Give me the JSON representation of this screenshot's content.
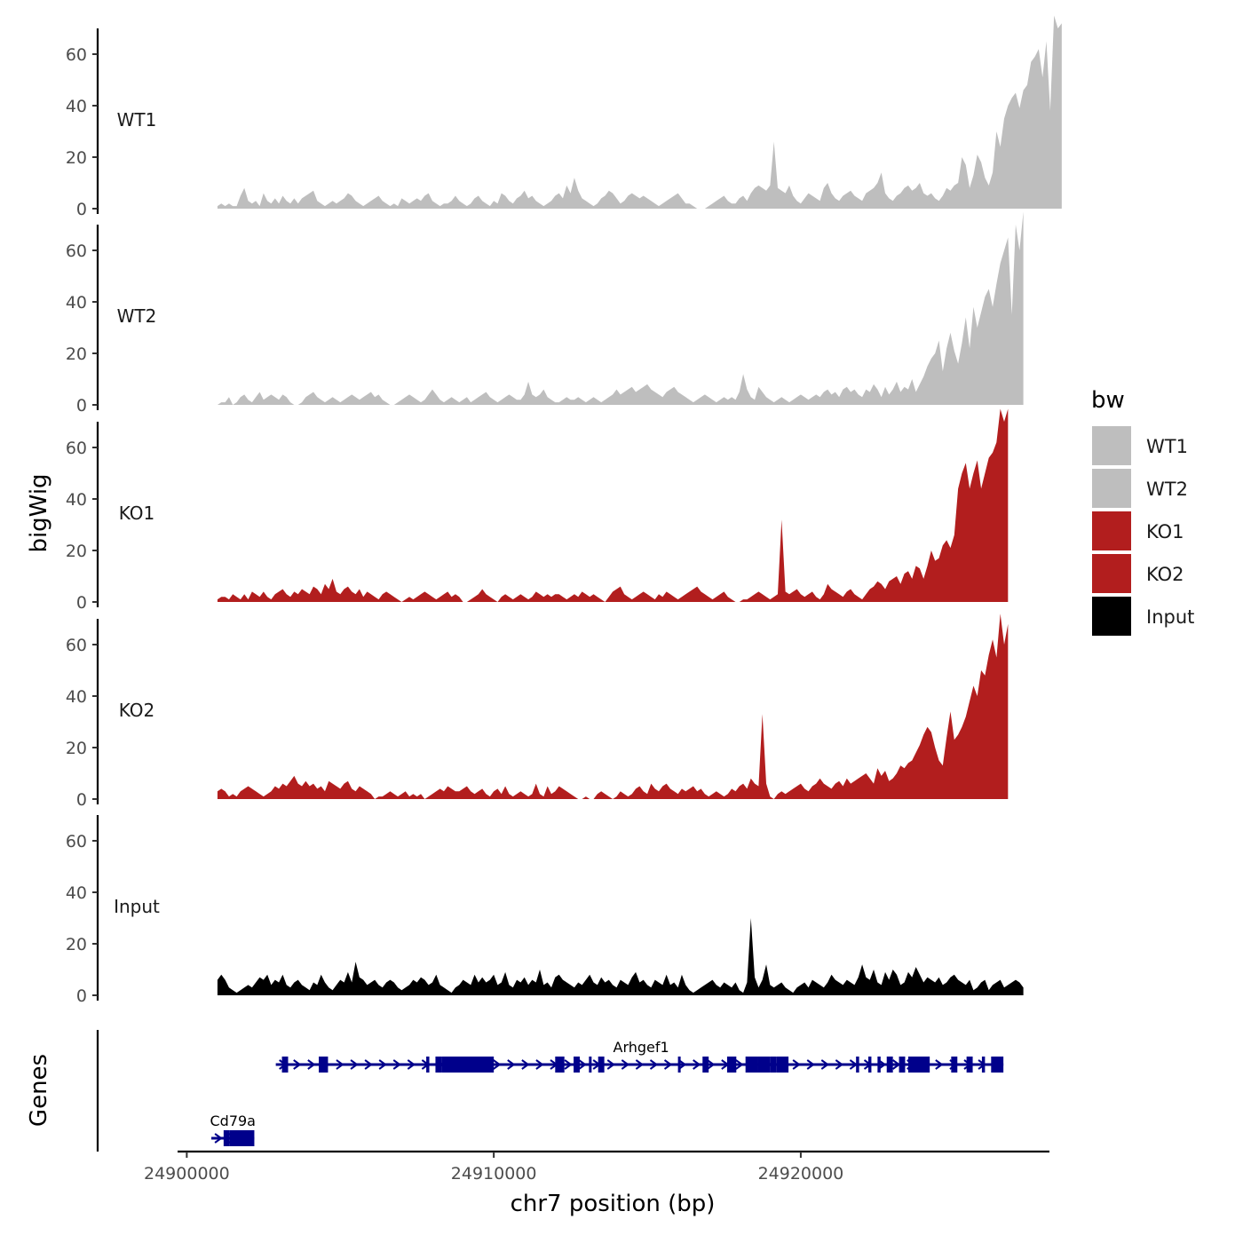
{
  "chart_data": {
    "type": "area",
    "ylabel": "bigWig",
    "xlabel": "chr7 position (bp)",
    "genes_label": "Genes",
    "legend_title": "bw",
    "xlim": [
      24899700,
      24928100
    ],
    "ylim": [
      0,
      70
    ],
    "yticks": [
      0,
      20,
      40,
      60
    ],
    "xticks": [
      24900000,
      24910000,
      24920000
    ],
    "xtick_labels": [
      "24900000",
      "24910000",
      "24920000"
    ],
    "colors": {
      "WT1": "#bebebe",
      "WT2": "#bebebe",
      "KO1": "#b21e1e",
      "KO2": "#b21e1e",
      "Input": "#000000",
      "gene": "#00008b"
    },
    "legend": [
      "WT1",
      "WT2",
      "KO1",
      "KO2",
      "Input"
    ],
    "x_start": 24901000,
    "x_step": 125,
    "series": [
      {
        "name": "WT1",
        "values": [
          1,
          2,
          1,
          2,
          1,
          1,
          5,
          8,
          3,
          2,
          3,
          1,
          6,
          3,
          2,
          4,
          2,
          5,
          3,
          2,
          4,
          2,
          4,
          5,
          6,
          7,
          3,
          2,
          1,
          2,
          3,
          2,
          3,
          4,
          6,
          5,
          3,
          2,
          1,
          2,
          3,
          4,
          5,
          3,
          2,
          1,
          2,
          1,
          4,
          3,
          2,
          3,
          4,
          3,
          5,
          6,
          3,
          2,
          1,
          2,
          2,
          3,
          5,
          3,
          2,
          1,
          2,
          4,
          5,
          3,
          2,
          1,
          3,
          2,
          6,
          5,
          3,
          2,
          4,
          5,
          7,
          4,
          5,
          3,
          2,
          1,
          2,
          3,
          5,
          6,
          4,
          9,
          6,
          12,
          7,
          4,
          3,
          2,
          1,
          2,
          4,
          5,
          7,
          6,
          4,
          2,
          3,
          5,
          6,
          5,
          4,
          5,
          4,
          3,
          2,
          1,
          2,
          3,
          4,
          5,
          6,
          4,
          2,
          2,
          1,
          0,
          0,
          0,
          1,
          2,
          3,
          4,
          5,
          3,
          2,
          2,
          4,
          5,
          3,
          6,
          8,
          9,
          8,
          7,
          9,
          26,
          8,
          7,
          6,
          9,
          5,
          3,
          2,
          4,
          6,
          5,
          4,
          3,
          8,
          10,
          6,
          4,
          3,
          5,
          6,
          7,
          5,
          4,
          3,
          6,
          7,
          8,
          10,
          14,
          6,
          4,
          3,
          5,
          6,
          8,
          9,
          7,
          8,
          10,
          6,
          5,
          6,
          4,
          3,
          5,
          8,
          7,
          9,
          10,
          20,
          17,
          8,
          13,
          21,
          18,
          12,
          9,
          14,
          30,
          24,
          35,
          40,
          43,
          45,
          39,
          46,
          48,
          57,
          59,
          62,
          51,
          65,
          38,
          75,
          70,
          72
        ]
      },
      {
        "name": "WT2",
        "values": [
          0,
          1,
          1,
          3,
          0,
          1,
          3,
          4,
          2,
          1,
          3,
          5,
          2,
          3,
          4,
          3,
          2,
          4,
          3,
          1,
          0,
          0,
          1,
          3,
          4,
          5,
          3,
          2,
          1,
          2,
          3,
          2,
          1,
          2,
          3,
          4,
          3,
          2,
          3,
          4,
          5,
          3,
          4,
          2,
          1,
          0,
          0,
          1,
          2,
          3,
          4,
          3,
          2,
          1,
          2,
          4,
          6,
          4,
          2,
          1,
          2,
          3,
          2,
          1,
          2,
          3,
          1,
          2,
          3,
          4,
          5,
          3,
          2,
          1,
          2,
          3,
          4,
          3,
          2,
          2,
          4,
          9,
          4,
          3,
          4,
          6,
          3,
          2,
          1,
          1,
          2,
          3,
          2,
          2,
          3,
          2,
          1,
          2,
          3,
          2,
          1,
          2,
          3,
          4,
          6,
          4,
          5,
          6,
          7,
          5,
          6,
          7,
          8,
          6,
          5,
          4,
          3,
          5,
          6,
          7,
          5,
          4,
          3,
          2,
          1,
          2,
          3,
          4,
          3,
          2,
          1,
          2,
          3,
          2,
          3,
          2,
          5,
          12,
          6,
          3,
          2,
          7,
          5,
          3,
          2,
          1,
          2,
          3,
          2,
          1,
          2,
          3,
          4,
          3,
          2,
          3,
          4,
          3,
          5,
          6,
          4,
          5,
          3,
          6,
          7,
          5,
          6,
          4,
          3,
          6,
          5,
          8,
          6,
          3,
          7,
          4,
          6,
          9,
          5,
          7,
          6,
          10,
          5,
          8,
          11,
          15,
          18,
          20,
          25,
          13,
          22,
          28,
          21,
          16,
          24,
          34,
          22,
          38,
          30,
          36,
          42,
          45,
          38,
          47,
          55,
          60,
          65,
          35,
          70,
          60,
          75
        ]
      },
      {
        "name": "KO1",
        "values": [
          1,
          2,
          2,
          1,
          3,
          2,
          1,
          3,
          1,
          4,
          3,
          2,
          4,
          2,
          1,
          3,
          4,
          5,
          3,
          2,
          4,
          3,
          5,
          4,
          3,
          6,
          5,
          3,
          7,
          5,
          9,
          4,
          3,
          5,
          6,
          4,
          3,
          5,
          2,
          4,
          3,
          2,
          1,
          3,
          4,
          3,
          2,
          1,
          0,
          1,
          2,
          1,
          2,
          3,
          4,
          3,
          2,
          1,
          2,
          3,
          4,
          2,
          3,
          2,
          0,
          0,
          1,
          2,
          3,
          5,
          3,
          2,
          1,
          0,
          2,
          3,
          2,
          1,
          2,
          3,
          2,
          1,
          2,
          4,
          3,
          2,
          3,
          2,
          3,
          3,
          2,
          1,
          2,
          3,
          2,
          4,
          3,
          2,
          3,
          2,
          1,
          0,
          2,
          4,
          5,
          6,
          3,
          2,
          1,
          2,
          3,
          4,
          3,
          2,
          1,
          3,
          2,
          4,
          3,
          2,
          1,
          2,
          3,
          4,
          5,
          6,
          4,
          3,
          2,
          1,
          2,
          3,
          4,
          2,
          1,
          0,
          0,
          1,
          1,
          2,
          3,
          4,
          3,
          2,
          1,
          2,
          3,
          32,
          4,
          3,
          4,
          5,
          3,
          2,
          3,
          4,
          2,
          1,
          3,
          7,
          5,
          4,
          3,
          2,
          4,
          5,
          3,
          2,
          1,
          3,
          5,
          6,
          8,
          7,
          5,
          8,
          9,
          10,
          7,
          11,
          12,
          9,
          14,
          13,
          9,
          14,
          20,
          16,
          17,
          22,
          24,
          21,
          26,
          44,
          50,
          54,
          44,
          50,
          55,
          44,
          50,
          56,
          58,
          62,
          75,
          70,
          75
        ]
      },
      {
        "name": "KO2",
        "values": [
          3,
          4,
          3,
          1,
          2,
          1,
          3,
          4,
          5,
          4,
          3,
          2,
          1,
          2,
          3,
          5,
          4,
          6,
          5,
          7,
          9,
          6,
          5,
          7,
          5,
          6,
          4,
          5,
          3,
          7,
          6,
          5,
          4,
          6,
          7,
          4,
          3,
          5,
          4,
          3,
          2,
          0,
          1,
          1,
          2,
          3,
          2,
          1,
          2,
          3,
          1,
          2,
          1,
          2,
          0,
          1,
          2,
          3,
          4,
          3,
          5,
          4,
          3,
          3,
          4,
          5,
          3,
          2,
          3,
          4,
          2,
          1,
          3,
          4,
          2,
          5,
          2,
          1,
          2,
          3,
          2,
          1,
          2,
          6,
          2,
          1,
          5,
          2,
          3,
          5,
          4,
          3,
          2,
          1,
          0,
          0,
          1,
          0,
          0,
          2,
          3,
          2,
          1,
          0,
          1,
          3,
          2,
          1,
          2,
          4,
          5,
          3,
          2,
          6,
          4,
          3,
          5,
          6,
          4,
          3,
          2,
          4,
          3,
          4,
          5,
          3,
          4,
          2,
          1,
          2,
          3,
          2,
          1,
          2,
          4,
          3,
          5,
          6,
          4,
          8,
          6,
          5,
          33,
          6,
          1,
          0,
          2,
          3,
          2,
          3,
          4,
          5,
          6,
          4,
          3,
          5,
          6,
          8,
          6,
          5,
          4,
          6,
          7,
          5,
          8,
          6,
          7,
          8,
          9,
          10,
          8,
          6,
          12,
          9,
          11,
          7,
          8,
          10,
          13,
          12,
          14,
          15,
          18,
          21,
          25,
          28,
          26,
          20,
          15,
          13,
          24,
          34,
          23,
          25,
          28,
          32,
          38,
          44,
          40,
          50,
          48,
          56,
          62,
          55,
          72,
          60,
          68
        ]
      },
      {
        "name": "Input",
        "values": [
          6,
          8,
          6,
          3,
          2,
          1,
          2,
          3,
          4,
          3,
          5,
          7,
          6,
          8,
          4,
          6,
          5,
          8,
          4,
          3,
          5,
          6,
          4,
          3,
          2,
          5,
          4,
          8,
          5,
          3,
          2,
          4,
          6,
          5,
          9,
          5,
          13,
          7,
          6,
          4,
          5,
          6,
          4,
          3,
          5,
          6,
          5,
          3,
          2,
          3,
          4,
          6,
          5,
          7,
          6,
          4,
          5,
          8,
          4,
          3,
          2,
          1,
          3,
          4,
          6,
          5,
          4,
          8,
          5,
          7,
          5,
          6,
          8,
          4,
          5,
          9,
          4,
          3,
          6,
          5,
          7,
          4,
          6,
          5,
          10,
          4,
          5,
          3,
          7,
          8,
          6,
          5,
          4,
          3,
          5,
          4,
          6,
          8,
          5,
          4,
          7,
          5,
          6,
          4,
          3,
          6,
          5,
          4,
          7,
          9,
          5,
          6,
          4,
          3,
          6,
          5,
          4,
          8,
          4,
          5,
          3,
          8,
          4,
          2,
          1,
          2,
          3,
          4,
          5,
          6,
          4,
          3,
          5,
          4,
          3,
          5,
          2,
          1,
          5,
          30,
          7,
          3,
          6,
          12,
          4,
          3,
          4,
          5,
          3,
          2,
          1,
          3,
          4,
          5,
          3,
          6,
          5,
          4,
          3,
          5,
          8,
          6,
          5,
          4,
          6,
          5,
          4,
          7,
          12,
          7,
          6,
          10,
          5,
          4,
          9,
          6,
          10,
          8,
          4,
          5,
          9,
          7,
          11,
          8,
          5,
          7,
          6,
          5,
          7,
          4,
          5,
          7,
          8,
          6,
          5,
          4,
          6,
          2,
          3,
          5,
          6,
          2,
          4,
          5,
          6,
          3,
          4,
          5,
          6,
          5,
          3
        ]
      }
    ],
    "genes": [
      {
        "name": "Arhgef1",
        "start": 24902900,
        "end": 24926600,
        "row": 0,
        "label_x": 24914800,
        "exons": [
          [
            24903100,
            24903300
          ],
          [
            24904300,
            24904600
          ],
          [
            24907800,
            24907900
          ],
          [
            24908100,
            24908300
          ],
          [
            24908300,
            24910000
          ],
          [
            24912000,
            24912300
          ],
          [
            24912600,
            24912800
          ],
          [
            24913100,
            24913150
          ],
          [
            24913400,
            24913600
          ],
          [
            24916000,
            24916050
          ],
          [
            24916800,
            24917000
          ],
          [
            24917600,
            24917900
          ],
          [
            24918200,
            24918600
          ],
          [
            24918600,
            24919000
          ],
          [
            24919000,
            24919200
          ],
          [
            24919200,
            24919600
          ],
          [
            24921800,
            24921900
          ],
          [
            24922200,
            24922300
          ],
          [
            24922500,
            24922600
          ],
          [
            24922800,
            24923000
          ],
          [
            24923200,
            24923400
          ],
          [
            24923500,
            24924200
          ],
          [
            24924900,
            24925100
          ],
          [
            24925400,
            24925600
          ],
          [
            24925900,
            24926000
          ],
          [
            24926200,
            24926600
          ]
        ]
      },
      {
        "name": "Cd79a",
        "start": 24900800,
        "end": 24902200,
        "row": 1,
        "label_x": 24901500,
        "exons": [
          [
            24901200,
            24901400
          ],
          [
            24901400,
            24902200
          ]
        ]
      }
    ]
  }
}
